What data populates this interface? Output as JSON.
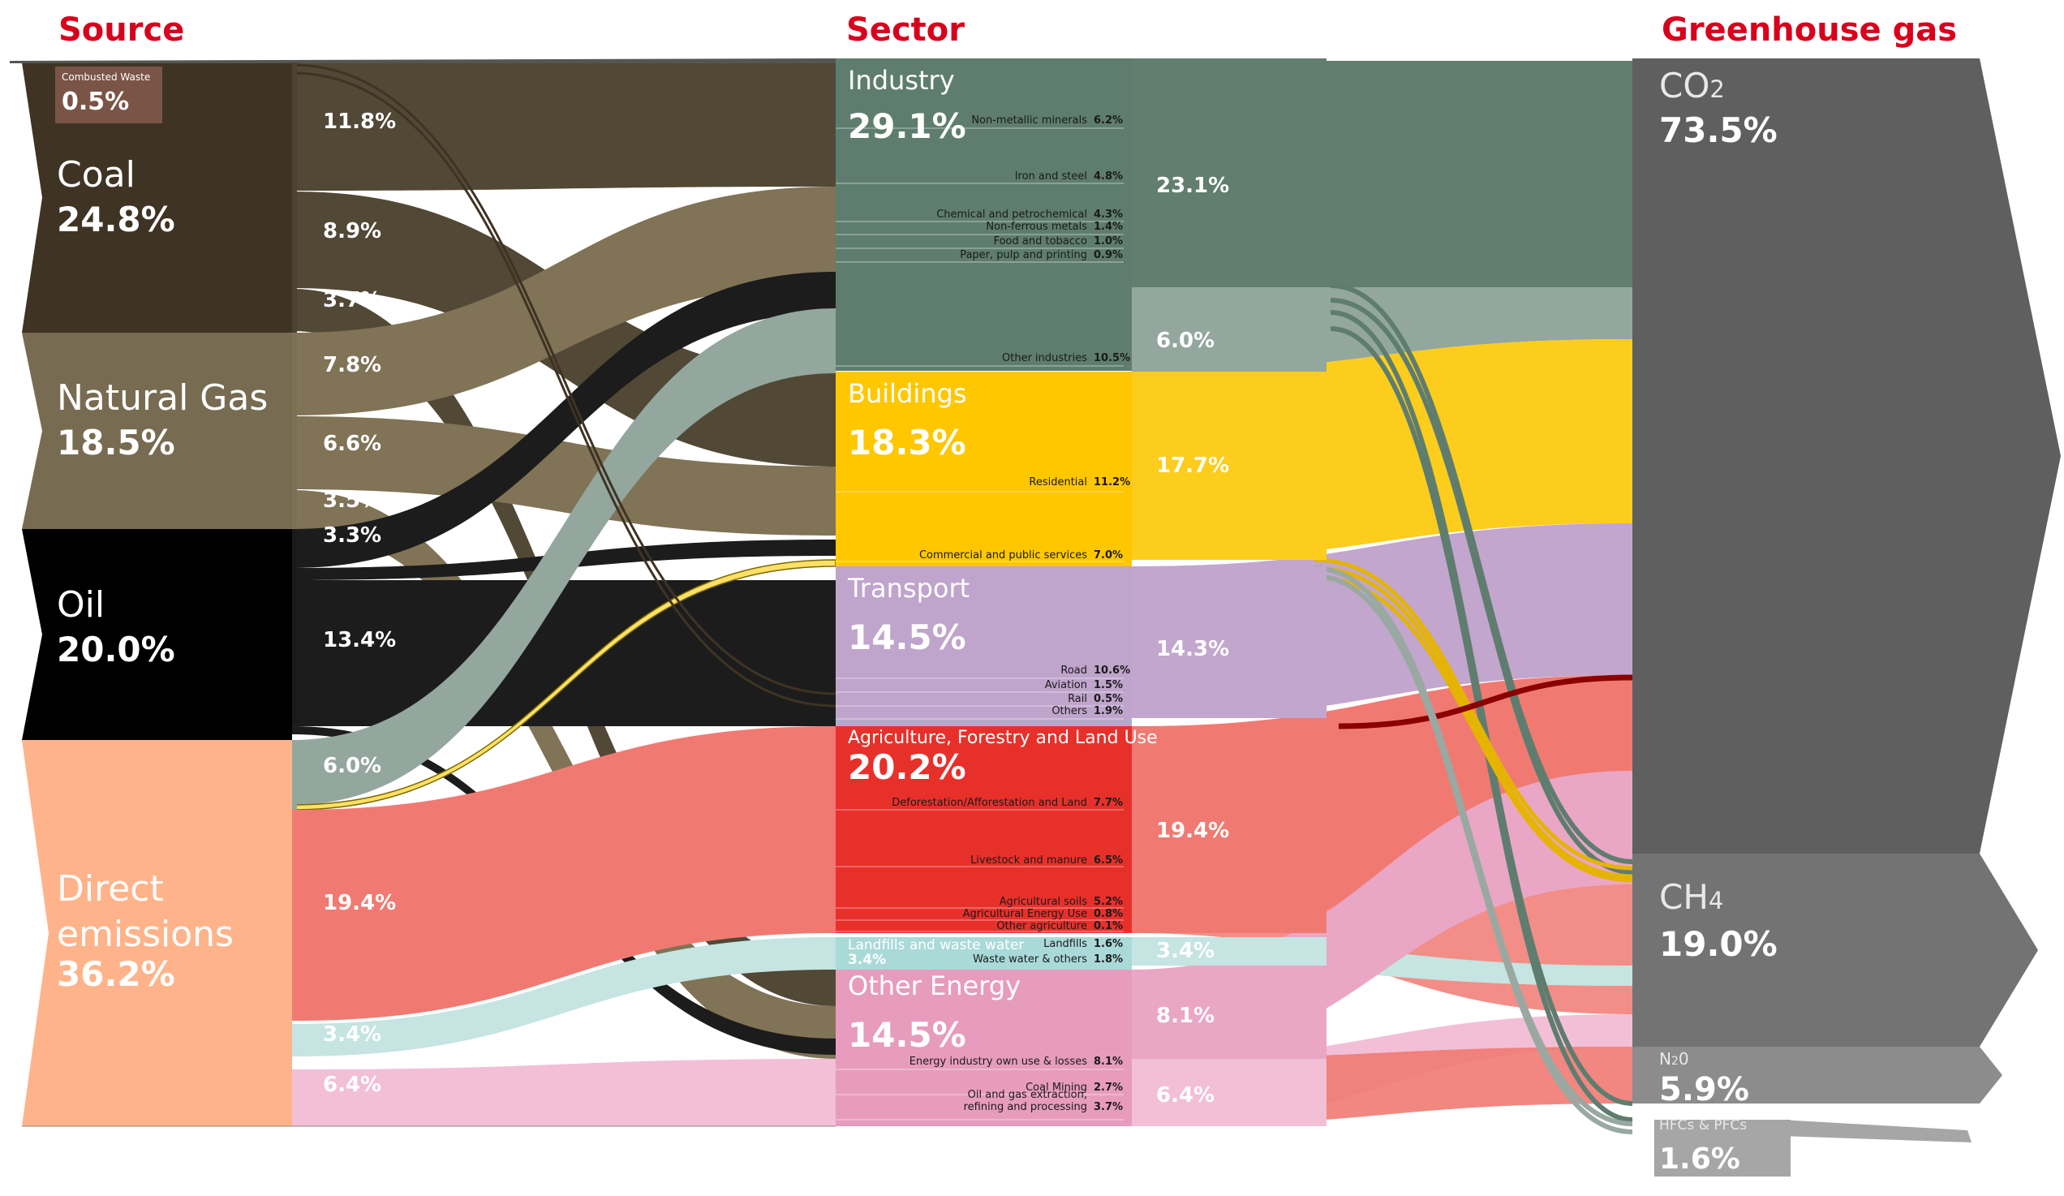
{
  "headers": {
    "source": "Source",
    "sector": "Sector",
    "gas": "Greenhouse gas"
  },
  "sources": [
    {
      "id": "coal",
      "name": "Coal",
      "value": "24.8%",
      "color": "#3f3324"
    },
    {
      "id": "gas",
      "name": "Natural Gas",
      "value": "18.5%",
      "color": "#776b52"
    },
    {
      "id": "oil",
      "name": "Oil",
      "value": "20.0%",
      "color": "#000000"
    },
    {
      "id": "direct",
      "name": "Direct emissions",
      "name_lines": [
        "Direct",
        "emissions"
      ],
      "value": "36.2%",
      "color": "#ffb38a"
    }
  ],
  "combusted_waste": {
    "name": "Combusted Waste",
    "value": "0.5%",
    "color": "#7a5446"
  },
  "source_flows": [
    "11.8%",
    "8.9%",
    "3.7%",
    "7.8%",
    "6.6%",
    "3.5%",
    "3.3%",
    "13.4%",
    "6.0%",
    "19.4%",
    "3.4%",
    "6.4%"
  ],
  "sectors": [
    {
      "id": "industry",
      "name": "Industry",
      "value": "29.1%",
      "color": "#5e7d6f",
      "subs": [
        {
          "name": "Non-metallic minerals",
          "value": "6.2%"
        },
        {
          "name": "Iron and steel",
          "value": "4.8%"
        },
        {
          "name": "Chemical and petrochemical",
          "value": "4.3%"
        },
        {
          "name": "Non-ferrous metals",
          "value": "1.4%"
        },
        {
          "name": "Food and tobacco",
          "value": "1.0%"
        },
        {
          "name": "Paper, pulp and printing",
          "value": "0.9%"
        },
        {
          "name": "Other industries",
          "value": "10.5%"
        }
      ]
    },
    {
      "id": "buildings",
      "name": "Buildings",
      "value": "18.3%",
      "color": "#ffc700",
      "subs": [
        {
          "name": "Residential",
          "value": "11.2%"
        },
        {
          "name": "Commercial and public services",
          "value": "7.0%"
        }
      ]
    },
    {
      "id": "transport",
      "name": "Transport",
      "value": "14.5%",
      "color": "#bfa4cc",
      "subs": [
        {
          "name": "Road",
          "value": "10.6%"
        },
        {
          "name": "Aviation",
          "value": "1.5%"
        },
        {
          "name": "Rail",
          "value": "0.5%"
        },
        {
          "name": "Others",
          "value": "1.9%"
        }
      ]
    },
    {
      "id": "agri",
      "name": "Agriculture, Forestry and Land Use",
      "value": "20.2%",
      "color": "#e8302b",
      "subs": [
        {
          "name": "Deforestation/Afforestation and Land",
          "value": "7.7%"
        },
        {
          "name": "Livestock and manure",
          "value": "6.5%"
        },
        {
          "name": "Agricultural soils",
          "value": "5.2%"
        },
        {
          "name": "Agricultural Energy Use",
          "value": "0.8%"
        },
        {
          "name": "Other agriculture",
          "value": "0.1%"
        }
      ]
    },
    {
      "id": "landfill",
      "name": "Landfills and waste water",
      "value": "3.4%",
      "color": "#a9dad8",
      "subs": [
        {
          "name": "Landfills",
          "value": "1.6%"
        },
        {
          "name": "Waste water & others",
          "value": "1.8%"
        }
      ]
    },
    {
      "id": "otherenergy",
      "name": "Other Energy",
      "value": "14.5%",
      "color": "#e79cbd",
      "subs": [
        {
          "name": "Energy industry own use & losses",
          "value": "8.1%"
        },
        {
          "name": "Coal Mining",
          "value": "2.7%"
        },
        {
          "name": "Oil and gas extraction, refining and processing",
          "name_lines": [
            "Oil and gas extraction,",
            "refining and processing"
          ],
          "value": "3.7%"
        }
      ]
    }
  ],
  "sector_flows": [
    "23.1%",
    "6.0%",
    "17.7%",
    "14.3%",
    "19.4%",
    "3.4%",
    "8.1%",
    "6.4%"
  ],
  "gases": [
    {
      "id": "co2",
      "name": "CO",
      "sub": "2",
      "value": "73.5%",
      "color": "#5f5f5f"
    },
    {
      "id": "ch4",
      "name": "CH",
      "sub": "4",
      "value": "19.0%",
      "color": "#737373"
    },
    {
      "id": "n2o",
      "name": "N",
      "sub": "2",
      "name_end": "0",
      "value": "5.9%",
      "color": "#8c8c8c"
    },
    {
      "id": "hfc",
      "name": "HFCs & PFCs",
      "value": "1.6%",
      "color": "#a6a6a6"
    }
  ],
  "colors": {
    "coal_flow": "#524836",
    "gas_flow": "#807356",
    "oil_flow": "#1c1c1c",
    "direct_co2": "#93a79e",
    "direct_agri": "#f07a72",
    "direct_landfill": "#c5e4e2",
    "direct_other": "#f2bfd6",
    "industry_flow": "#617e6f",
    "buildings_flow": "#fccd1c",
    "transport_flow": "#c2a6cd",
    "agri_flow": "#f07a72",
    "landfill_flow": "#c5e4e2",
    "other_flow": "#eaa6c5"
  }
}
